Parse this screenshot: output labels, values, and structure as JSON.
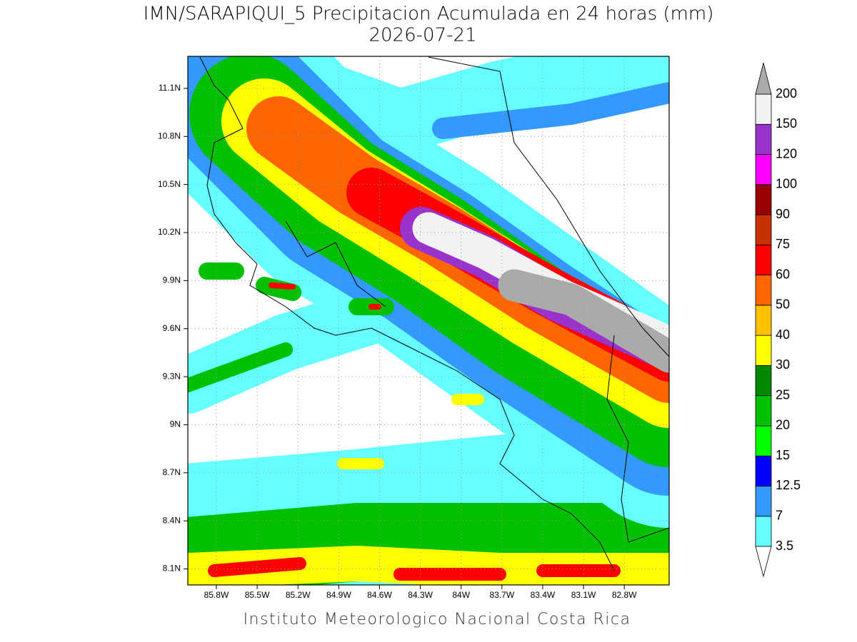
{
  "header": {
    "title": "IMN/SARAPIQUI_5 Precipitacion Acumulada en 24 horas (mm)",
    "subtitle": "2026-07-21"
  },
  "map": {
    "xlim": [
      -86.01,
      -82.47
    ],
    "ylim": [
      8.0,
      11.3
    ],
    "xticks": [
      {
        "value": -85.8,
        "label": "85.8W"
      },
      {
        "value": -85.5,
        "label": "85.5W"
      },
      {
        "value": -85.2,
        "label": "85.2W"
      },
      {
        "value": -84.9,
        "label": "84.9W"
      },
      {
        "value": -84.6,
        "label": "84.6W"
      },
      {
        "value": -84.3,
        "label": "84.3W"
      },
      {
        "value": -84.0,
        "label": "84W"
      },
      {
        "value": -83.7,
        "label": "83.7W"
      },
      {
        "value": -83.4,
        "label": "83.4W"
      },
      {
        "value": -83.1,
        "label": "83.1W"
      },
      {
        "value": -82.8,
        "label": "82.8W"
      }
    ],
    "yticks": [
      {
        "value": 8.1,
        "label": "8.1N"
      },
      {
        "value": 8.4,
        "label": "8.4N"
      },
      {
        "value": 8.7,
        "label": "8.7N"
      },
      {
        "value": 9.0,
        "label": "9N"
      },
      {
        "value": 9.3,
        "label": "9.3N"
      },
      {
        "value": 9.6,
        "label": "9.6N"
      },
      {
        "value": 9.9,
        "label": "9.9N"
      },
      {
        "value": 10.2,
        "label": "10.2N"
      },
      {
        "value": 10.5,
        "label": "10.5N"
      },
      {
        "value": 10.8,
        "label": "10.8N"
      },
      {
        "value": 11.1,
        "label": "11.1N"
      }
    ],
    "grid": true
  },
  "colorbar": {
    "levels": [
      3.5,
      7,
      12.5,
      15,
      20,
      25,
      30,
      40,
      50,
      60,
      75,
      90,
      100,
      120,
      150,
      200
    ],
    "colors": [
      "#66ffff",
      "#3399ff",
      "#0000ff",
      "#00ff00",
      "#00c000",
      "#008800",
      "#ffff00",
      "#ffc000",
      "#ff6600",
      "#ff0000",
      "#c83200",
      "#990000",
      "#ff00ff",
      "#9933cc",
      "#f2f2f2"
    ],
    "under_color": "#ffffff",
    "over_color": "#aaaaaa"
  },
  "footer": "Instituto Meteorologico Nacional Costa Rica"
}
